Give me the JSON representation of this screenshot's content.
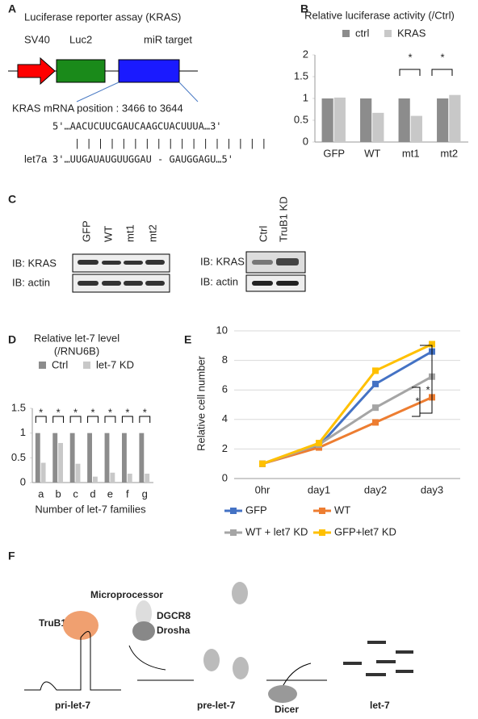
{
  "chart_data": [
    {
      "type": "bar",
      "title": "Relative luciferase activity (/Ctrl)",
      "categories": [
        "GFP",
        "WT",
        "mt1",
        "mt2"
      ],
      "series": [
        {
          "name": "ctrl",
          "color": "#8c8c8c",
          "values": [
            1,
            1,
            1,
            1
          ]
        },
        {
          "name": "KRAS",
          "color": "#c8c8c8",
          "values": [
            1.02,
            0.67,
            0.6,
            1.08
          ]
        }
      ],
      "ylim": [
        0,
        2
      ],
      "yticks": [
        0,
        0.5,
        1,
        1.5,
        2
      ],
      "annotations": [
        "*",
        "*"
      ]
    },
    {
      "type": "bar",
      "title": "Relative let-7 level",
      "subtitle": "(/RNU6B)",
      "x_label": "Number of let-7 families",
      "categories": [
        "a",
        "b",
        "c",
        "d",
        "e",
        "f",
        "g"
      ],
      "series": [
        {
          "name": "Ctrl",
          "color": "#8c8c8c",
          "values": [
            1,
            1,
            1,
            1,
            1,
            1,
            1
          ]
        },
        {
          "name": "let-7 KD",
          "color": "#c8c8c8",
          "values": [
            0.4,
            0.8,
            0.38,
            0.12,
            0.2,
            0.18,
            0.18
          ]
        }
      ],
      "ylim": [
        0,
        1.5
      ],
      "yticks": [
        0,
        0.5,
        1,
        1.5
      ],
      "annotations": [
        "*",
        "*",
        "*",
        "*",
        "*",
        "*",
        "*"
      ]
    },
    {
      "type": "line",
      "y_label": "Relative cell number",
      "categories": [
        "0hr",
        "day1",
        "day2",
        "day3"
      ],
      "series": [
        {
          "name": "GFP",
          "color": "#4472c4",
          "values": [
            1,
            2.2,
            6.4,
            8.6
          ]
        },
        {
          "name": "WT",
          "color": "#ed7d31",
          "values": [
            1,
            2.1,
            3.8,
            5.5
          ]
        },
        {
          "name": "WT + let7 KD",
          "color": "#a5a5a5",
          "values": [
            1,
            2.3,
            4.8,
            6.9
          ]
        },
        {
          "name": "GFP+let7 KD",
          "color": "#ffc000",
          "values": [
            1,
            2.4,
            7.3,
            9.1
          ]
        }
      ],
      "ylim": [
        0,
        10
      ],
      "yticks": [
        0,
        2,
        4,
        6,
        8,
        10
      ],
      "annotations": [
        "*",
        "*"
      ]
    }
  ],
  "figure": {
    "panel_labels": [
      "A",
      "B",
      "C",
      "D",
      "E",
      "F"
    ],
    "a": {
      "title": "Luciferase reporter assay (KRAS)",
      "elements": [
        "SV40",
        "Luc2",
        "miR target"
      ],
      "position": "KRAS mRNA position : 3466 to 3644",
      "seq_top": "5'…AACUCUUCGAUCAAGCUACUUUA…3'",
      "pairing": "| | | | | |   | | | | |   | | | | | |",
      "mirna": "let7a",
      "seq_bottom": "3'…UUGAUAUGUUGGAU - GAUGGAGU…5'"
    },
    "c": {
      "lanes_left": [
        "GFP",
        "WT",
        "mt1",
        "mt2"
      ],
      "lanes_right": [
        "Ctrl",
        "TruB1 KD"
      ],
      "ib_kras": "IB: KRAS",
      "ib_actin": "IB: actin"
    },
    "f": {
      "microprocessor": "Microprocessor",
      "dgcr8": "DGCR8",
      "drosha": "Drosha",
      "trub1": "TruB1",
      "pri": "pri-let-7",
      "pre": "pre-let-7",
      "dicer": "Dicer",
      "let7": "let-7"
    }
  }
}
